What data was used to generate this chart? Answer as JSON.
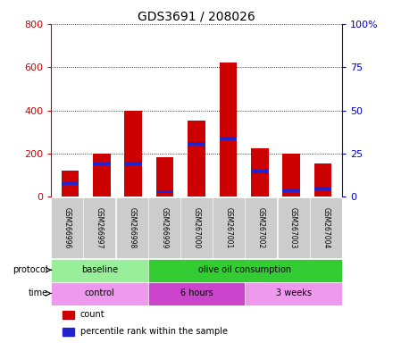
{
  "title": "GDS3691 / 208026",
  "samples": [
    "GSM266996",
    "GSM266997",
    "GSM266998",
    "GSM266999",
    "GSM267000",
    "GSM267001",
    "GSM267002",
    "GSM267003",
    "GSM267004"
  ],
  "count_values": [
    120,
    200,
    400,
    185,
    355,
    620,
    225,
    200,
    155
  ],
  "pct_bottom_values": [
    55,
    145,
    148,
    18,
    238,
    262,
    110,
    22,
    32
  ],
  "pct_height_values": [
    14,
    14,
    14,
    14,
    14,
    14,
    14,
    14,
    14
  ],
  "ylim_left": [
    0,
    800
  ],
  "ylim_right": [
    0,
    100
  ],
  "yticks_left": [
    0,
    200,
    400,
    600,
    800
  ],
  "yticks_right": [
    0,
    25,
    50,
    75,
    100
  ],
  "ytick_labels_left": [
    "0",
    "200",
    "400",
    "600",
    "800"
  ],
  "ytick_labels_right": [
    "0",
    "25",
    "50",
    "75",
    "100%"
  ],
  "left_axis_color": "#cc0000",
  "right_axis_color": "#0000cc",
  "bar_color_red": "#cc0000",
  "bar_color_blue": "#2222cc",
  "protocol_groups": [
    {
      "label": "baseline",
      "start": 0,
      "end": 3,
      "color": "#99ee99"
    },
    {
      "label": "olive oil consumption",
      "start": 3,
      "end": 9,
      "color": "#33cc33"
    }
  ],
  "time_groups": [
    {
      "label": "control",
      "start": 0,
      "end": 3,
      "color": "#ee99ee"
    },
    {
      "label": "6 hours",
      "start": 3,
      "end": 6,
      "color": "#cc44cc"
    },
    {
      "label": "3 weeks",
      "start": 6,
      "end": 9,
      "color": "#ee99ee"
    }
  ],
  "legend_count_label": "count",
  "legend_pct_label": "percentile rank within the sample",
  "background_color": "#ffffff",
  "sample_box_color": "#cccccc"
}
